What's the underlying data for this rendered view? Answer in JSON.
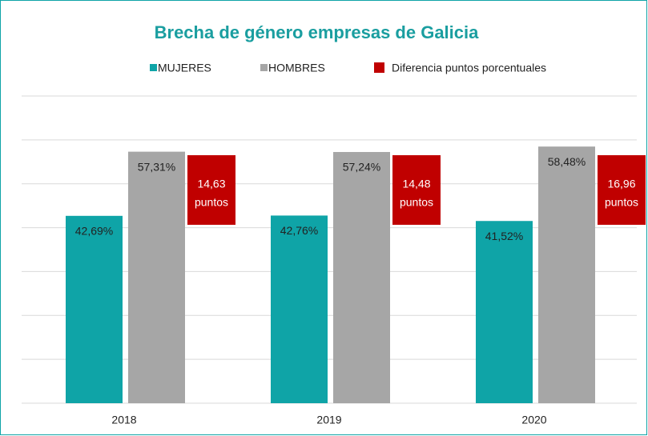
{
  "chart_data": {
    "type": "bar",
    "title": "Brecha de género empresas de Galicia",
    "categories": [
      "2018",
      "2019",
      "2020"
    ],
    "series": [
      {
        "name": "MUJERES",
        "color": "#0fa4a7",
        "values": [
          42.69,
          42.76,
          41.52
        ],
        "value_labels": [
          "42,69%",
          "42,76%",
          "41,52%"
        ]
      },
      {
        "name": "HOMBRES",
        "color": "#a6a6a6",
        "values": [
          57.31,
          57.24,
          58.48
        ],
        "value_labels": [
          "57,31%",
          "57,24%",
          "58,48%"
        ]
      }
    ],
    "difference": {
      "name": "Diferencia puntos porcentuales",
      "color": "#c00000",
      "values": [
        14.63,
        14.48,
        16.96
      ],
      "value_labels": [
        "14,63",
        "14,48",
        "16,96"
      ],
      "unit": "puntos"
    },
    "ylim": [
      0,
      70
    ],
    "yticks": [
      0,
      10,
      20,
      30,
      40,
      50,
      60,
      70
    ],
    "grid": true
  }
}
